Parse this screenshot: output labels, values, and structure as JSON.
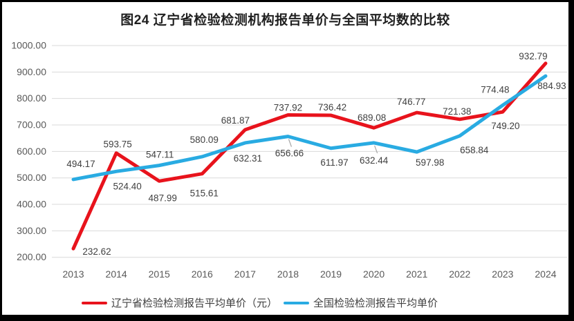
{
  "page": {
    "background_color": "#000000",
    "surface_color": "#ffffff"
  },
  "chart_data": {
    "type": "line",
    "title": "图24 辽宁省检验检测机构报告单价与全国平均数的比较",
    "categories": [
      "2013",
      "2014",
      "2015",
      "2016",
      "2017",
      "2018",
      "2019",
      "2020",
      "2021",
      "2022",
      "2023",
      "2024"
    ],
    "series": [
      {
        "name": "辽宁省检验检测报告平均单价（元）",
        "color": "#e8131c",
        "values": [
          232.62,
          593.75,
          487.99,
          515.61,
          681.87,
          737.92,
          736.42,
          689.08,
          746.77,
          721.38,
          749.2,
          932.79
        ]
      },
      {
        "name": "全国检验检测报告平均单价",
        "color": "#29abe2",
        "values": [
          494.17,
          524.4,
          547.11,
          580.09,
          632.31,
          656.66,
          611.97,
          632.44,
          597.98,
          658.84,
          774.48,
          884.93
        ]
      }
    ],
    "y_ticks": [
      {
        "label": "1000.00",
        "value": 1000
      },
      {
        "label": "900.00",
        "value": 900
      },
      {
        "label": "800.00",
        "value": 800
      },
      {
        "label": "700.00",
        "value": 700
      },
      {
        "label": "600.00",
        "value": 600
      },
      {
        "label": "500.00",
        "value": 500
      },
      {
        "label": "400.00",
        "value": 400
      },
      {
        "label": "300.00",
        "value": 300
      },
      {
        "label": "200.00",
        "value": 200
      }
    ],
    "ylim": [
      200,
      1000
    ],
    "grid": "horizontal",
    "legend_position": "bottom",
    "value_label_format": "0.00",
    "colors": {
      "grid": "#d9d9d9",
      "axis_text": "#595959",
      "label_text": "#404040",
      "leader": "#a6a6a6",
      "title_text": "#1f1f1f"
    }
  }
}
